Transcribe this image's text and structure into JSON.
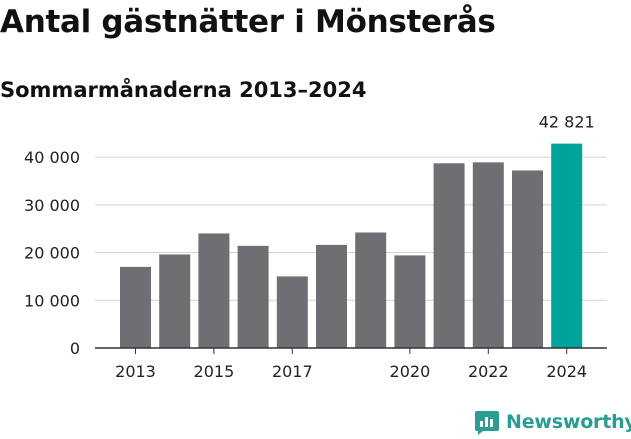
{
  "title": "Antal gästnätter i Mönsterås",
  "subtitle": "Sommarmånaderna 2013–2024",
  "brand": {
    "name": "Newsworthy",
    "icon": "newsworthy-logo-icon",
    "color": "#2a9d92"
  },
  "chart_data": {
    "type": "bar",
    "categories": [
      "2013",
      "2014",
      "2015",
      "2016",
      "2017",
      "2018",
      "2019",
      "2020",
      "2021",
      "2022",
      "2023",
      "2024"
    ],
    "values": [
      17000,
      19600,
      24000,
      21400,
      15000,
      21600,
      24200,
      19400,
      38700,
      38900,
      37200,
      42821
    ],
    "ylim": [
      0,
      44000
    ],
    "yticks": [
      0,
      10000,
      20000,
      30000,
      40000
    ],
    "ytick_labels": [
      "0",
      "10 000",
      "20 000",
      "30 000",
      "40 000"
    ],
    "xtick_labels": [
      "2013",
      "",
      "2015",
      "",
      "2017",
      "",
      "",
      "2020",
      "",
      "2022",
      "",
      "2024"
    ],
    "highlight_label": "42 821",
    "grid": true,
    "colors": {
      "bar": "#6f6e73",
      "highlight": "#00a39a",
      "grid": "#d4d4d4",
      "axis": "#333333"
    }
  }
}
